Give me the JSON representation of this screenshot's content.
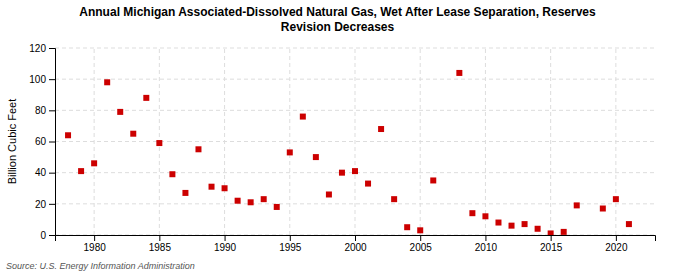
{
  "chart_data": {
    "type": "scatter",
    "title": "Annual Michigan Associated-Dissolved Natural Gas, Wet After Lease Separation, Reserves\nRevision Decreases",
    "ylabel": "Billion Cubic Feet",
    "source": "Source: U.S. Energy Information Administration",
    "x": [
      1978,
      1979,
      1980,
      1981,
      1982,
      1983,
      1984,
      1985,
      1986,
      1987,
      1988,
      1989,
      1990,
      1991,
      1992,
      1993,
      1994,
      1995,
      1996,
      1997,
      1998,
      1999,
      2000,
      2001,
      2002,
      2003,
      2004,
      2005,
      2006,
      2008,
      2009,
      2010,
      2011,
      2012,
      2013,
      2014,
      2015,
      2016,
      2017,
      2019,
      2020,
      2021
    ],
    "values": [
      64,
      41,
      46,
      98,
      79,
      65,
      88,
      59,
      39,
      27,
      55,
      31,
      30,
      22,
      21,
      23,
      18,
      53,
      76,
      50,
      26,
      40,
      41,
      33,
      68,
      23,
      5,
      3,
      35,
      104,
      14,
      12,
      8,
      6,
      7,
      4,
      1,
      2,
      19,
      17,
      23,
      7
    ],
    "color": "#cc0000",
    "marker": "square",
    "xlim": [
      1977,
      2023
    ],
    "ylim": [
      0,
      120
    ],
    "xticks": [
      1980,
      1985,
      1990,
      1995,
      2000,
      2005,
      2010,
      2015,
      2020
    ],
    "yticks": [
      0,
      20,
      40,
      60,
      80,
      100,
      120
    ],
    "grid": true
  }
}
